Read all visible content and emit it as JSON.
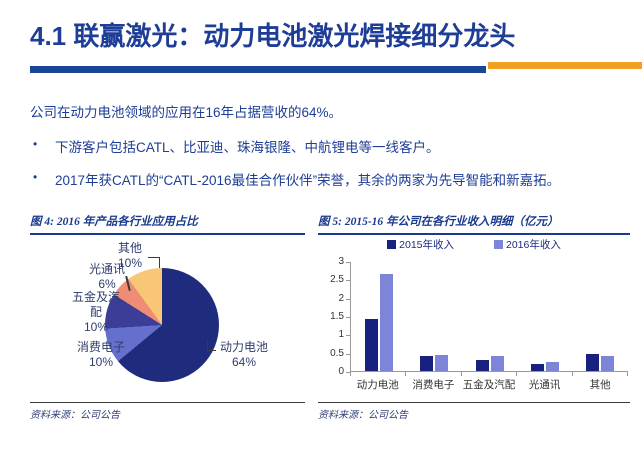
{
  "page": {
    "title": "4.1 联赢激光：动力电池激光焊接细分龙头"
  },
  "summary": {
    "bullet_char": "•",
    "intro": "公司在动力电池领域的应用在16年占据营收的64%。",
    "bullets": [
      "下游客户包括CATL、比亚迪、珠海银隆、中航锂电等一线客户。",
      "2017年获CATL的“CATL-2016最佳合作伙伴”荣誉，其余的两家为先导智能和新嘉拓。"
    ]
  },
  "figure4": {
    "caption": "图 4: 2016 年产品各行业应用占比",
    "source": "资料来源：公司公告"
  },
  "figure5": {
    "caption": "图 5: 2015-16 年公司在各行业收入明细（亿元）",
    "source": "资料来源：公司公告"
  },
  "chart_data": [
    {
      "type": "pie",
      "title": "2016 年产品各行业应用占比",
      "labels": [
        "动力电池",
        "消费电子",
        "五金及汽配",
        "光通讯",
        "其他"
      ],
      "values": [
        64,
        10,
        10,
        6,
        10
      ],
      "display_values": [
        "64%",
        "10%",
        "10%",
        "6%",
        "10%"
      ],
      "unit": "%",
      "colors": [
        "#1f2c7e",
        "#6470cc",
        "#3c3d96",
        "#ee8c74",
        "#f9c678"
      ],
      "start_angle_deg": 0,
      "direction": "clockwise",
      "legend_position": "none"
    },
    {
      "type": "bar",
      "title": "2015-16 年公司在各行业收入明细（亿元）",
      "categories": [
        "动力电池",
        "消费电子",
        "五金及汽配",
        "光通讯",
        "其他"
      ],
      "series": [
        {
          "name": "2015年收入",
          "color": "#16227e",
          "values": [
            1.42,
            0.4,
            0.31,
            0.2,
            0.46
          ]
        },
        {
          "name": "2016年收入",
          "color": "#7c85d8",
          "values": [
            2.67,
            0.44,
            0.42,
            0.26,
            0.42
          ]
        }
      ],
      "xlabel": "",
      "ylabel": "",
      "ylim": [
        0,
        3
      ],
      "yticks": [
        0,
        0.5,
        1,
        1.5,
        2,
        2.5,
        3
      ],
      "grid": false,
      "legend_position": "top"
    }
  ],
  "colors": {
    "title_navy": "#1e3d96",
    "rule_blue": "#1b4693",
    "rule_orange": "#f2a024",
    "caption_navy": "#1a3a8f",
    "bar_2015": "#16227e",
    "bar_2016": "#7c85d8"
  }
}
